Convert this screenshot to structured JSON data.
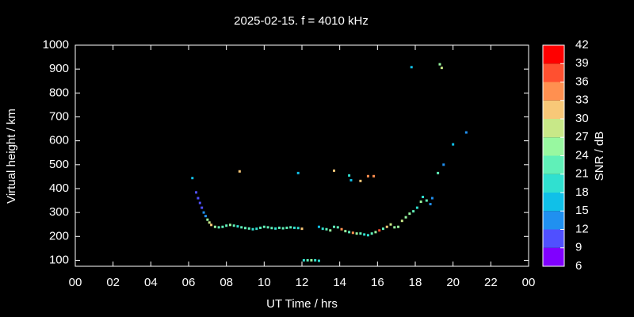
{
  "chart_data": {
    "type": "scatter",
    "title": "2025-02-15. f = 4010 kHz",
    "x_label": "UT Time / hrs",
    "y_label": "Virtual height / km",
    "xlim": [
      0,
      24
    ],
    "xticks": [
      {
        "value": 0,
        "label": "00"
      },
      {
        "value": 2,
        "label": "02"
      },
      {
        "value": 4,
        "label": "04"
      },
      {
        "value": 6,
        "label": "06"
      },
      {
        "value": 8,
        "label": "08"
      },
      10,
      12,
      14,
      16,
      18,
      20,
      22,
      {
        "value": 24,
        "label": "00"
      }
    ],
    "ylim": [
      75,
      1000
    ],
    "yticks": [
      100,
      200,
      300,
      400,
      500,
      600,
      700,
      800,
      900,
      1000
    ],
    "colorbar": {
      "label": "SNR / dB",
      "ticks": [
        6,
        9,
        12,
        15,
        18,
        21,
        24,
        27,
        30,
        33,
        36,
        39,
        42
      ],
      "colors": [
        "#8000ff",
        "#5050ff",
        "#2090f0",
        "#10c0e8",
        "#30e0d0",
        "#60f0b8",
        "#98f8a0",
        "#c8e888",
        "#f8c878",
        "#ff9050",
        "#ff5030",
        "#ff0000"
      ]
    },
    "x": [
      6.2,
      6.4,
      6.5,
      6.6,
      6.7,
      6.8,
      6.9,
      7.0,
      7.1,
      7.2,
      7.4,
      7.6,
      7.8,
      8.0,
      8.2,
      8.4,
      8.6,
      8.8,
      9.0,
      9.2,
      9.4,
      9.6,
      9.8,
      10.0,
      10.2,
      10.4,
      10.6,
      10.8,
      11.0,
      11.2,
      11.4,
      11.6,
      11.8,
      12.0,
      12.1,
      12.3,
      12.5,
      12.7,
      12.9,
      12.9,
      13.1,
      13.3,
      13.5,
      13.7,
      13.9,
      14.1,
      14.3,
      14.5,
      14.7,
      14.9,
      15.1,
      15.3,
      15.5,
      15.7,
      15.9,
      16.1,
      16.3,
      16.5,
      16.7,
      16.9,
      17.1,
      17.3,
      17.5,
      17.7,
      17.9,
      18.1,
      18.3,
      18.4,
      18.6,
      18.8,
      18.9,
      19.2,
      19.5,
      20.0,
      20.7,
      17.8,
      19.3,
      19.4,
      8.7,
      11.8,
      13.7,
      14.5,
      14.6,
      15.1,
      15.5,
      15.8
    ],
    "y": [
      444,
      384,
      360,
      340,
      320,
      300,
      285,
      270,
      258,
      248,
      240,
      238,
      240,
      245,
      248,
      245,
      242,
      238,
      235,
      233,
      230,
      232,
      236,
      240,
      238,
      235,
      233,
      236,
      234,
      236,
      238,
      236,
      235,
      232,
      100,
      100,
      100,
      100,
      98,
      240,
      232,
      230,
      225,
      240,
      238,
      230,
      222,
      218,
      215,
      212,
      212,
      208,
      205,
      212,
      218,
      225,
      232,
      240,
      250,
      238,
      240,
      265,
      280,
      295,
      305,
      320,
      345,
      365,
      350,
      335,
      360,
      465,
      500,
      585,
      635,
      908,
      920,
      905,
      472,
      465,
      475,
      455,
      435,
      432,
      452,
      452
    ],
    "snr": [
      15,
      10,
      10,
      11,
      11,
      12,
      13,
      24,
      27,
      30,
      25,
      23,
      22,
      21,
      24,
      22,
      20,
      22,
      23,
      21,
      20,
      18,
      22,
      23,
      21,
      22,
      20,
      22,
      21,
      23,
      22,
      20,
      18,
      30,
      20,
      22,
      24,
      19,
      18,
      16,
      20,
      22,
      24,
      23,
      21,
      33,
      24,
      22,
      33,
      24,
      22,
      20,
      18,
      22,
      24,
      37,
      22,
      30,
      28,
      25,
      24,
      28,
      26,
      24,
      22,
      20,
      24,
      18,
      22,
      12,
      13,
      22,
      12,
      16,
      12,
      16,
      25,
      27,
      30,
      16,
      30,
      18,
      17,
      31,
      33,
      33
    ]
  }
}
